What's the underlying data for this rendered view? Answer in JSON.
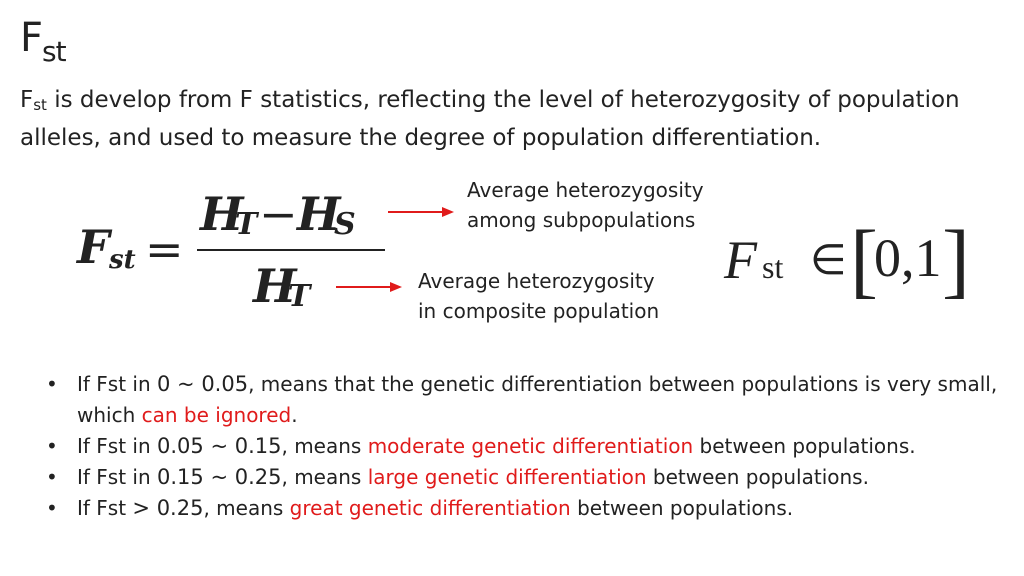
{
  "title": {
    "main": "F",
    "sub": "st"
  },
  "intro": {
    "sym_main": "F",
    "sym_sub": "st",
    "text": " is develop from F statistics, reflecting the level of heterozygosity of population alleles, and used to measure the degree of population differentiation."
  },
  "formula": {
    "lhs_main": "F",
    "lhs_sub": "st",
    "equals": "=",
    "num_h1": "H",
    "num_t": "T",
    "minus": "−",
    "num_h2": "H",
    "num_s": "S",
    "den_h": "H",
    "den_t": "T"
  },
  "annotations": {
    "top_line1": "Average heterozygosity",
    "top_line2": "among subpopulations",
    "bottom_line1": "Average heterozygosity",
    "bottom_line2": "in composite population",
    "arrow_color": "#e01b1b"
  },
  "membership": {
    "f": "F",
    "sub": "st",
    "in": "∈",
    "lbracket": "[",
    "interval": "0,1",
    "rbracket": "]"
  },
  "colors": {
    "highlight": "#e01b1b",
    "text": "#222222"
  },
  "bullets": [
    {
      "a": "If Fst in ",
      "range": "0 ~ 0.05",
      "b": ", means that the genetic differentiation between populations is very small, which ",
      "hl": "can be ignored",
      "c": "."
    },
    {
      "a": "If Fst in ",
      "range": "0.05 ~ 0.15",
      "b": ", means ",
      "hl": "moderate genetic differentiation",
      "c": " between populations."
    },
    {
      "a": "If Fst in ",
      "range": "0.15 ~ 0.25",
      "b": ", means ",
      "hl": "large genetic differentiation",
      "c": " between populations."
    },
    {
      "a": "If Fst ",
      "range": "> 0.25",
      "b": ", means ",
      "hl": "great genetic differentiation",
      "c": " between populations."
    }
  ],
  "bullet_glyph": "•"
}
